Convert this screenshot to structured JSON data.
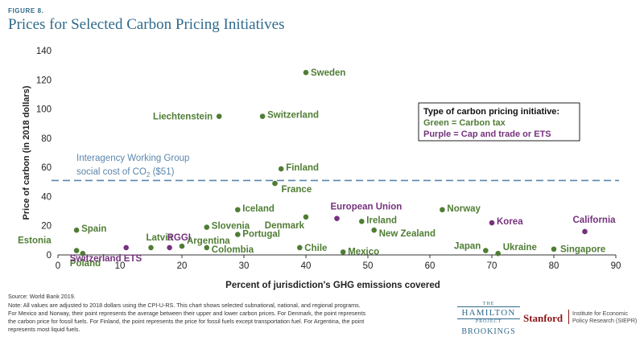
{
  "figure_label": "FIGURE 8.",
  "title": "Prices for Selected Carbon Pricing Initiatives",
  "source": "Source: World Bank 2019.",
  "note": "Note: All values are adjusted to 2018 dollars using the CPI-U-RS. This chart shows selected subnational, national, and regional programs. For Mexico and Norway, their point represents the average between their upper and lower carbon prices. For Denmark, the point represents the carbon price for fossil fuels. For Finland, the point represents the price for fossil fuels except transportation fuel. For Argentina, the point represents most liquid fuels.",
  "logos": {
    "hamilton_the": "THE",
    "hamilton_name": "HAMILTON",
    "hamilton_project": "PROJECT",
    "brookings": "BROOKINGS",
    "stanford": "Stanford",
    "siepr_line1": "Institute for Economic",
    "siepr_line2": "Policy Research (SIEPR)"
  },
  "colors": {
    "green": "#4f7d34",
    "purple": "#75327d",
    "reference": "#5b86ad",
    "title": "#2f6a8c"
  },
  "chart_data": {
    "type": "scatter",
    "xlabel": "Percent of jurisdiction's GHG emissions covered",
    "ylabel": "Price of carbon (in 2018 dollars)",
    "xlim": [
      0,
      90
    ],
    "ylim": [
      0,
      140
    ],
    "xticks": [
      0,
      10,
      20,
      30,
      40,
      50,
      60,
      70,
      80,
      90
    ],
    "yticks": [
      0,
      20,
      40,
      60,
      80,
      100,
      120,
      140
    ],
    "grid": false,
    "reference_line": {
      "y": 51,
      "label_line1": "Interagency Working Group",
      "label_line2": "social cost of CO",
      "label_sub": "2",
      "label_tail": " ($51)"
    },
    "legend": {
      "position": "right",
      "title": "Type of carbon pricing initiative:",
      "green_entry": "Green = Carbon tax",
      "purple_entry": "Purple = Cap and trade or ETS"
    },
    "series": [
      {
        "type_key": "green",
        "points": [
          {
            "label": "Sweden",
            "x": 40,
            "y": 125
          },
          {
            "label": "Liechtenstein",
            "x": 26,
            "y": 95
          },
          {
            "label": "Switzerland",
            "x": 33,
            "y": 95
          },
          {
            "label": "Finland",
            "x": 36,
            "y": 59
          },
          {
            "label": "France",
            "x": 35,
            "y": 49
          },
          {
            "label": "Iceland",
            "x": 29,
            "y": 31
          },
          {
            "label": "Denmark",
            "x": 40,
            "y": 26
          },
          {
            "label": "Norway",
            "x": 62,
            "y": 31
          },
          {
            "label": "Ireland",
            "x": 49,
            "y": 23
          },
          {
            "label": "Slovenia",
            "x": 24,
            "y": 19
          },
          {
            "label": "Spain",
            "x": 3,
            "y": 17
          },
          {
            "label": "Portugal",
            "x": 29,
            "y": 14
          },
          {
            "label": "New Zealand",
            "x": 51,
            "y": 17
          },
          {
            "label": "Argentina",
            "x": 20,
            "y": 6
          },
          {
            "label": "Colombia",
            "x": 24,
            "y": 5
          },
          {
            "label": "Chile",
            "x": 39,
            "y": 5
          },
          {
            "label": "Mexico",
            "x": 46,
            "y": 2
          },
          {
            "label": "Estonia",
            "x": 3,
            "y": 3
          },
          {
            "label": "Poland",
            "x": 4,
            "y": 1
          },
          {
            "label": "Latvia",
            "x": 15,
            "y": 5
          },
          {
            "label": "Japan",
            "x": 69,
            "y": 3
          },
          {
            "label": "Ukraine",
            "x": 71,
            "y": 1
          },
          {
            "label": "Singapore",
            "x": 80,
            "y": 4
          }
        ]
      },
      {
        "type_key": "purple",
        "points": [
          {
            "label": "European Union",
            "x": 45,
            "y": 25
          },
          {
            "label": "Korea",
            "x": 70,
            "y": 22
          },
          {
            "label": "California",
            "x": 85,
            "y": 16
          },
          {
            "label": "RGGI",
            "x": 18,
            "y": 5
          },
          {
            "label": "Switzerland ETS",
            "x": 11,
            "y": 5
          }
        ]
      }
    ]
  }
}
